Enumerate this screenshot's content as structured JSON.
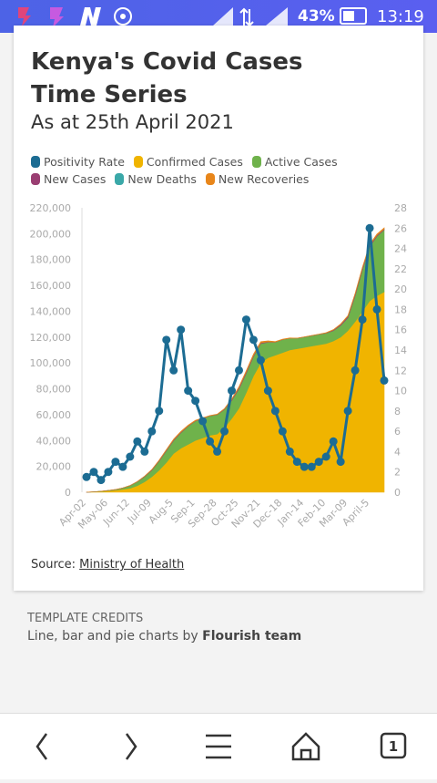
{
  "status_bar": {
    "battery": "43%",
    "time": "13:19"
  },
  "chart_data": {
    "type": "area",
    "title": "Kenya's Covid Cases Time Series",
    "subtitle": "As at 25th April 2021",
    "categories": [
      "Apr-02",
      null,
      null,
      "May-06",
      null,
      null,
      "Jun-12",
      null,
      null,
      "Jul-09",
      null,
      null,
      "Aug-5",
      null,
      null,
      "Sep-1",
      null,
      null,
      "Sep-28",
      null,
      null,
      "Oct-25",
      null,
      null,
      "Nov-21",
      null,
      null,
      "Dec-18",
      null,
      null,
      "Jan-14",
      null,
      null,
      "Feb-10",
      null,
      null,
      "Mar-09",
      null,
      null,
      "April-5",
      null,
      null
    ],
    "series": [
      {
        "name": "Positivity Rate",
        "type": "line",
        "axis": "y2",
        "color": "#1c6c93",
        "values": [
          1.5,
          2,
          1.2,
          2,
          3,
          2.5,
          3.5,
          5,
          4,
          6,
          8,
          15,
          12,
          16,
          10,
          9,
          7,
          5,
          4,
          6,
          10,
          12,
          17,
          15,
          13,
          10,
          8,
          6,
          4,
          3,
          2.5,
          2.5,
          3,
          3.5,
          5,
          3,
          8,
          12,
          17,
          26,
          18,
          11
        ]
      },
      {
        "name": "Confirmed Cases",
        "type": "area",
        "color": "#f0b400",
        "values": [
          0,
          200,
          500,
          1000,
          1500,
          2200,
          3000,
          5000,
          8000,
          12000,
          17000,
          23000,
          30000,
          34000,
          37000,
          40000,
          42000,
          44000,
          45000,
          50000,
          57000,
          65000,
          77000,
          90000,
          100000,
          104000,
          106000,
          108000,
          110000,
          111000,
          112000,
          113000,
          114000,
          115000,
          117000,
          120000,
          125000,
          132000,
          140000,
          148000,
          152000,
          155000
        ]
      },
      {
        "name": "Active Cases",
        "type": "area",
        "color": "#6fb24b",
        "values": [
          0,
          100,
          200,
          300,
          500,
          1000,
          2000,
          3000,
          4000,
          5000,
          7000,
          9000,
          10000,
          12000,
          14000,
          15000,
          15000,
          15000,
          15000,
          14000,
          14000,
          15000,
          15000,
          15000,
          15000,
          12000,
          10000,
          10000,
          9000,
          8000,
          8000,
          8000,
          8000,
          8000,
          8000,
          9000,
          10000,
          20000,
          32000,
          42000,
          46000,
          48000
        ]
      },
      {
        "name": "New Cases",
        "type": "area",
        "color": "#9a3e72",
        "values": [
          10,
          20,
          30,
          50,
          80,
          100,
          150,
          200,
          300,
          400,
          500,
          600,
          600,
          500,
          400,
          300,
          200,
          150,
          200,
          400,
          700,
          1000,
          1100,
          900,
          600,
          400,
          200,
          150,
          150,
          100,
          100,
          120,
          150,
          250,
          500,
          800,
          1100,
          1300,
          1400,
          1000,
          800,
          600
        ]
      },
      {
        "name": "New Deaths",
        "type": "area",
        "color": "#3aa8a8",
        "values": [
          0,
          1,
          1,
          2,
          2,
          3,
          4,
          5,
          6,
          8,
          10,
          12,
          12,
          10,
          8,
          6,
          5,
          4,
          5,
          8,
          12,
          18,
          20,
          16,
          12,
          8,
          5,
          4,
          3,
          3,
          3,
          3,
          4,
          6,
          10,
          15,
          20,
          25,
          28,
          22,
          18,
          15
        ]
      },
      {
        "name": "New Recoveries",
        "type": "area",
        "color": "#e8861a",
        "values": [
          5,
          10,
          20,
          30,
          50,
          60,
          80,
          100,
          150,
          200,
          300,
          400,
          500,
          600,
          500,
          400,
          300,
          250,
          200,
          300,
          500,
          700,
          900,
          1000,
          900,
          700,
          400,
          250,
          200,
          150,
          120,
          120,
          130,
          200,
          300,
          400,
          500,
          600,
          700,
          800,
          900,
          900
        ]
      }
    ],
    "ylim": [
      0,
      220000
    ],
    "yticks": [
      0,
      {
        "value": 20000,
        "label": "20,000"
      },
      {
        "value": 40000,
        "label": "40,000"
      },
      {
        "value": 60000,
        "label": "60,000"
      },
      {
        "value": 80000,
        "label": "80,000"
      },
      {
        "value": 100000,
        "label": "100,000"
      },
      {
        "value": 120000,
        "label": "120,000"
      },
      {
        "value": 140000,
        "label": "140,000"
      },
      {
        "value": 160000,
        "label": "160,000"
      },
      {
        "value": 180000,
        "label": "180,000"
      },
      {
        "value": 200000,
        "label": "200,000"
      },
      {
        "value": 220000,
        "label": "220,000"
      }
    ],
    "y2lim": [
      0,
      28
    ],
    "y2ticks": [
      0,
      2,
      4,
      6,
      8,
      10,
      12,
      14,
      16,
      18,
      20,
      22,
      24,
      26,
      28
    ],
    "source_label": "Source:",
    "source": "Ministry of Health"
  },
  "credits": {
    "heading": "TEMPLATE CREDITS",
    "text": "Line, bar and pie charts by",
    "author": "Flourish team"
  },
  "nav": {
    "tabs": "1"
  }
}
